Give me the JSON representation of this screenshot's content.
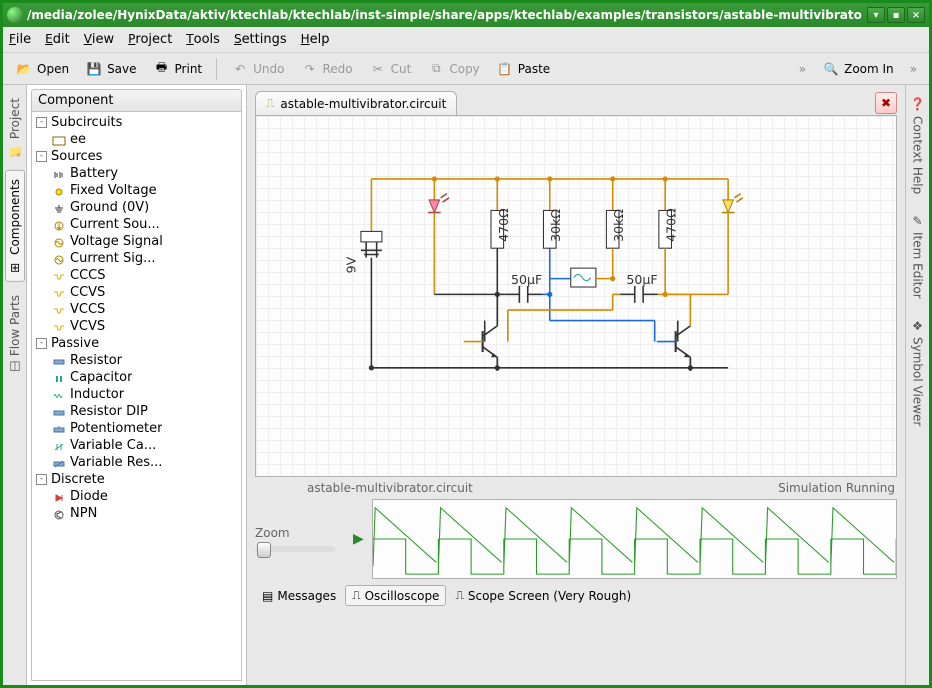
{
  "title": "/media/zolee/HynixData/aktiv/ktechlab/ktechlab/inst-simple/share/apps/ktechlab/examples/transistors/astable-multivibrato",
  "menu": [
    "File",
    "Edit",
    "View",
    "Project",
    "Tools",
    "Settings",
    "Help"
  ],
  "toolbar": {
    "open": "Open",
    "save": "Save",
    "print": "Print",
    "undo": "Undo",
    "redo": "Redo",
    "cut": "Cut",
    "copy": "Copy",
    "paste": "Paste",
    "zoomin": "Zoom In"
  },
  "left_tabs": [
    "Project",
    "Components",
    "Flow Parts"
  ],
  "right_tabs": [
    "Context Help",
    "Item Editor",
    "Symbol Viewer"
  ],
  "sidebar_header": "Component",
  "tree": [
    {
      "lvl": 1,
      "exp": "-",
      "label": "Subcircuits"
    },
    {
      "lvl": 2,
      "ico": "sub",
      "label": "ee"
    },
    {
      "lvl": 1,
      "exp": "-",
      "label": "Sources"
    },
    {
      "lvl": 2,
      "ico": "bat",
      "label": "Battery"
    },
    {
      "lvl": 2,
      "ico": "fv",
      "label": "Fixed Voltage"
    },
    {
      "lvl": 2,
      "ico": "gnd",
      "label": "Ground (0V)"
    },
    {
      "lvl": 2,
      "ico": "cs",
      "label": "Current Sou..."
    },
    {
      "lvl": 2,
      "ico": "vs",
      "label": "Voltage Signal"
    },
    {
      "lvl": 2,
      "ico": "cs2",
      "label": "Current Sig..."
    },
    {
      "lvl": 2,
      "ico": "cc",
      "label": "CCCS"
    },
    {
      "lvl": 2,
      "ico": "cc",
      "label": "CCVS"
    },
    {
      "lvl": 2,
      "ico": "cc",
      "label": "VCCS"
    },
    {
      "lvl": 2,
      "ico": "cc",
      "label": "VCVS"
    },
    {
      "lvl": 1,
      "exp": "-",
      "label": "Passive"
    },
    {
      "lvl": 2,
      "ico": "res",
      "label": "Resistor"
    },
    {
      "lvl": 2,
      "ico": "cap",
      "label": "Capacitor"
    },
    {
      "lvl": 2,
      "ico": "ind",
      "label": "Inductor"
    },
    {
      "lvl": 2,
      "ico": "res",
      "label": "Resistor DIP"
    },
    {
      "lvl": 2,
      "ico": "pot",
      "label": "Potentiometer"
    },
    {
      "lvl": 2,
      "ico": "vc",
      "label": "Variable Ca..."
    },
    {
      "lvl": 2,
      "ico": "vr",
      "label": "Variable Res..."
    },
    {
      "lvl": 1,
      "exp": "-",
      "label": "Discrete"
    },
    {
      "lvl": 2,
      "ico": "dio",
      "label": "Diode"
    },
    {
      "lvl": 2,
      "ico": "npn",
      "label": "NPN"
    }
  ],
  "doc_tab": "astable-multivibrator.circuit",
  "doc_name": "astable-multivibrator.circuit",
  "sim_status": "Simulation Running",
  "zoom_label": "Zoom",
  "bottom_tabs": {
    "messages": "Messages",
    "oscilloscope": "Oscilloscope",
    "scope": "Scope Screen (Very Rough)"
  },
  "circuit": {
    "colors": {
      "pwr": "#d68a00",
      "gnd": "#222",
      "sig1": "#1a6add",
      "sig2": "#d68a00"
    },
    "labels": {
      "v": "9V",
      "r1": "470Ω",
      "r2": "30kΩ",
      "r3": "30kΩ",
      "r4": "470Ω",
      "c1": "50μF",
      "c2": "50μF"
    }
  },
  "scope": {
    "color": "#2a9a2a",
    "periods": 8
  }
}
